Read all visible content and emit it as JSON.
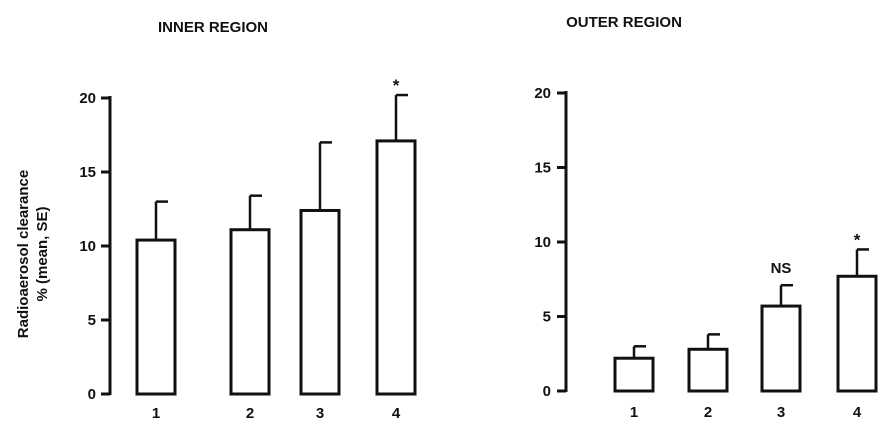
{
  "ylabel_line1": "Radioaerosol clearance",
  "ylabel_line2": "% (mean, SE)",
  "chart_data": [
    {
      "type": "bar",
      "title": "INNER REGION",
      "categories": [
        "1",
        "2",
        "3",
        "4"
      ],
      "values": [
        10.4,
        11.1,
        12.4,
        17.1
      ],
      "error_se": [
        2.6,
        2.3,
        4.6,
        3.1
      ],
      "annotations": [
        "",
        "",
        "",
        "*"
      ],
      "yticks": [
        0,
        5,
        10,
        15,
        20
      ],
      "ylim": [
        0,
        20
      ],
      "ylabel": "Radioaerosol clearance % (mean, SE)"
    },
    {
      "type": "bar",
      "title": "OUTER REGION",
      "categories": [
        "1",
        "2",
        "3",
        "4"
      ],
      "values": [
        2.2,
        2.8,
        5.7,
        7.7
      ],
      "error_se": [
        0.8,
        1.0,
        1.4,
        1.8
      ],
      "annotations": [
        "",
        "",
        "NS",
        "*"
      ],
      "yticks": [
        0,
        5,
        10,
        15,
        20
      ],
      "ylim": [
        0,
        20
      ],
      "ylabel": ""
    }
  ]
}
